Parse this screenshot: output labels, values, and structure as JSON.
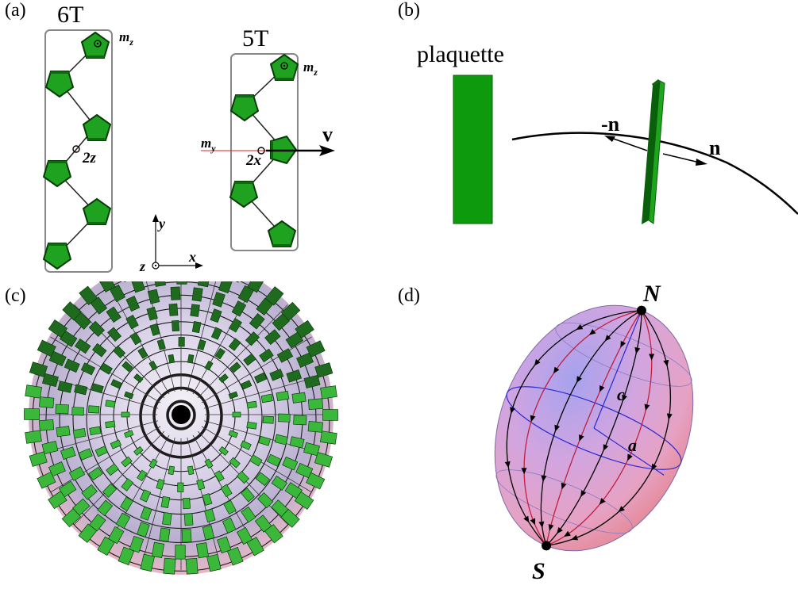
{
  "panels": {
    "a": {
      "label": "(a)",
      "title_6t": "6T",
      "title_5t": "5T",
      "mz": "m",
      "mz_sub": "z",
      "my": "m",
      "my_sub": "y",
      "axis_2z": "2z",
      "axis_2x": "2x",
      "vector_v": "v",
      "axis_x": "x",
      "axis_y": "y",
      "axis_z": "z"
    },
    "b": {
      "label": "(b)",
      "plaquette": "plaquette",
      "neg_n": "-n",
      "n": "n"
    },
    "c": {
      "label": "(c)"
    },
    "d": {
      "label": "(d)",
      "north": "N",
      "south": "S",
      "c": "c",
      "a": "a"
    }
  },
  "colors": {
    "green": "#1a9a1a",
    "green_dark": "#0b5c0b",
    "frame": "#888888",
    "sphere_pink": "#e7a0c8",
    "sphere_blue": "#9a96e8",
    "red_axis": "#e02020"
  }
}
